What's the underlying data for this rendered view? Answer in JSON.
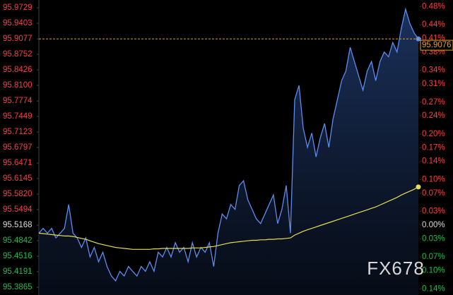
{
  "chart_data": {
    "type": "line",
    "watermark": "FX678",
    "ylim": [
      95.3865,
      95.9729
    ],
    "yticks": [
      95.9729,
      {
        "value": 95.9403,
        "label": "95.9403"
      },
      95.9077,
      95.8752,
      95.8426,
      {
        "value": 95.81,
        "label": "95.8100"
      },
      95.7774,
      95.7449,
      95.7123,
      95.6797,
      95.6471,
      95.6145,
      {
        "value": 95.582,
        "label": "95.5820"
      },
      95.5494,
      95.5168,
      95.4842,
      95.4516,
      95.4191,
      95.3865
    ],
    "y2lim": [
      -0.1364,
      0.4775
    ],
    "y2ticks": [
      {
        "value": 0.48,
        "label": "0.48%"
      },
      {
        "value": 0.44,
        "label": "0.44%"
      },
      {
        "value": 0.41,
        "label": "0.41%"
      },
      {
        "value": 0.38,
        "label": "0.38%"
      },
      {
        "value": 0.34,
        "label": "0.34%"
      },
      {
        "value": 0.31,
        "label": "0.31%"
      },
      {
        "value": 0.27,
        "label": "0.27%"
      },
      {
        "value": 0.24,
        "label": "0.24%"
      },
      {
        "value": 0.2,
        "label": "0.20%"
      },
      {
        "value": 0.17,
        "label": "0.17%"
      },
      {
        "value": 0.14,
        "label": "0.14%"
      },
      {
        "value": 0.1,
        "label": "0.10%"
      },
      {
        "value": 0.07,
        "label": "0.07%"
      },
      {
        "value": 0.03,
        "label": "0.03%"
      },
      {
        "value": 0,
        "label": "0.00%"
      },
      {
        "value": -0.03,
        "label": "0.03%"
      },
      {
        "value": -0.07,
        "label": "0.07%"
      },
      {
        "value": -0.1,
        "label": "0.10%"
      },
      {
        "value": -0.14,
        "label": "0.14%"
      }
    ],
    "up_color": "#ff3d3d",
    "down_color": "#1fbf4a",
    "last_price": {
      "value": 95.9076,
      "label": "95.9076",
      "color": "#e0a030"
    },
    "series": [
      {
        "color": "#5b8cf0",
        "values": [
          95.5,
          95.51,
          95.5,
          95.51,
          95.49,
          95.5,
          95.51,
          95.56,
          95.5,
          95.49,
          95.47,
          95.49,
          95.45,
          95.47,
          95.44,
          95.46,
          95.43,
          95.41,
          95.4,
          95.42,
          95.41,
          95.43,
          95.42,
          95.41,
          95.43,
          95.42,
          95.44,
          95.42,
          95.46,
          95.45,
          95.47,
          95.45,
          95.48,
          95.46,
          95.47,
          95.44,
          95.48,
          95.45,
          95.47,
          95.46,
          95.48,
          95.43,
          95.5,
          95.54,
          95.53,
          95.56,
          95.55,
          95.6,
          95.61,
          95.57,
          95.55,
          95.53,
          95.52,
          95.54,
          95.56,
          95.58,
          95.52,
          95.55,
          95.6,
          95.5,
          95.78,
          95.81,
          95.72,
          95.68,
          95.71,
          95.66,
          95.7,
          95.73,
          95.68,
          95.74,
          95.78,
          95.82,
          95.84,
          95.89,
          95.86,
          95.83,
          95.8,
          95.84,
          95.86,
          95.82,
          95.86,
          95.88,
          95.87,
          95.9,
          95.88,
          95.93,
          95.97,
          95.94,
          95.92,
          95.9076
        ]
      },
      {
        "color": "#e6dd55",
        "values": [
          95.5,
          95.499,
          95.498,
          95.497,
          95.496,
          95.495,
          95.494,
          95.494,
          95.493,
          95.491,
          95.489,
          95.487,
          95.484,
          95.481,
          95.478,
          95.476,
          95.474,
          95.472,
          95.47,
          95.469,
          95.468,
          95.467,
          95.466,
          95.466,
          95.466,
          95.466,
          95.466,
          95.467,
          95.467,
          95.468,
          95.468,
          95.468,
          95.468,
          95.468,
          95.468,
          95.468,
          95.469,
          95.469,
          95.469,
          95.47,
          95.471,
          95.472,
          95.474,
          95.476,
          95.478,
          95.48,
          95.481,
          95.482,
          95.483,
          95.484,
          95.485,
          95.485,
          95.486,
          95.486,
          95.487,
          95.487,
          95.488,
          95.488,
          95.489,
          95.49,
          95.496,
          95.5,
          95.504,
          95.507,
          95.51,
          95.513,
          95.516,
          95.519,
          95.522,
          95.525,
          95.528,
          95.531,
          95.534,
          95.537,
          95.54,
          95.543,
          95.546,
          95.549,
          95.552,
          95.555,
          95.559,
          95.563,
          95.567,
          95.571,
          95.575,
          95.58,
          95.584,
          95.588,
          95.592,
          95.597
        ]
      }
    ]
  }
}
